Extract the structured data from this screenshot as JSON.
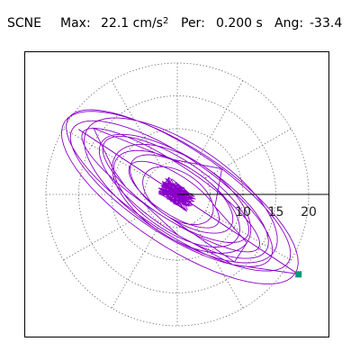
{
  "header": {
    "station": "SCNE",
    "max_label": "Max:",
    "max_value": "22.1",
    "max_unit": "cm/s",
    "max_exp": "2",
    "per_label": "Per:",
    "per_value": "0.200 s",
    "ang_label": "Ang:",
    "ang_value": "-33.4"
  },
  "chart_data": {
    "type": "polar-hodogram",
    "title": "SCNE  Max: 22.1 cm/s2  Per: 0.200 s  Ang: -33.4",
    "max": 22.1,
    "period_s": 0.2,
    "angle_deg": -33.4,
    "radial_ticks": [
      5,
      10,
      15,
      20
    ],
    "radial_tick_labels": [
      "10",
      "15",
      "20"
    ],
    "r_max": 25,
    "spoke_angles_deg": [
      0,
      30,
      60,
      90,
      120,
      150,
      180,
      210,
      240,
      270,
      300,
      330
    ],
    "grid": true,
    "trace_color": "#8a00c8",
    "marker_color": "#009a78",
    "max_point": {
      "r": 22.1,
      "angle_deg": -33.4
    }
  }
}
